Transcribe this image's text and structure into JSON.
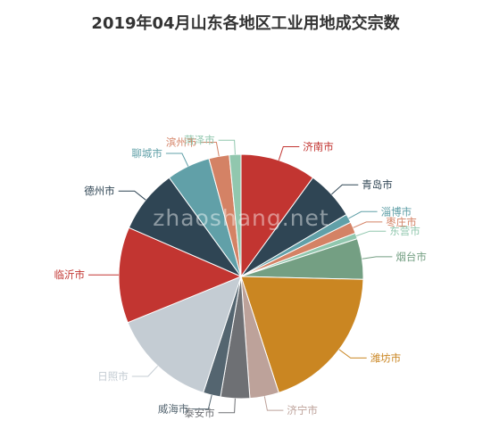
{
  "chart_data": {
    "type": "pie",
    "title": "2019年04月山东各地区工业用地成交宗数",
    "watermark": "zhaoshang.net",
    "slices": [
      {
        "label": "济南市",
        "value": 26,
        "color": "#c23531"
      },
      {
        "label": "青岛市",
        "value": 17,
        "color": "#2f4554"
      },
      {
        "label": "淄博市",
        "value": 3,
        "color": "#61a0a8"
      },
      {
        "label": "枣庄市",
        "value": 4,
        "color": "#d48265"
      },
      {
        "label": "东营市",
        "value": 2,
        "color": "#91c7ae"
      },
      {
        "label": "烟台市",
        "value": 14,
        "color": "#749f83"
      },
      {
        "label": "潍坊市",
        "value": 51,
        "color": "#ca8622"
      },
      {
        "label": "济宁市",
        "value": 10,
        "color": "#bda29a"
      },
      {
        "label": "泰安市",
        "value": 10,
        "color": "#6e7074"
      },
      {
        "label": "威海市",
        "value": 6,
        "color": "#546570"
      },
      {
        "label": "日照市",
        "value": 36,
        "color": "#c4ccd3"
      },
      {
        "label": "临沂市",
        "value": 33,
        "color": "#c23531"
      },
      {
        "label": "德州市",
        "value": 22,
        "color": "#2f4554"
      },
      {
        "label": "聊城市",
        "value": 15,
        "color": "#61a0a8"
      },
      {
        "label": "滨州市",
        "value": 7,
        "color": "#d48265"
      },
      {
        "label": "菏泽市",
        "value": 4,
        "color": "#91c7ae"
      }
    ]
  }
}
